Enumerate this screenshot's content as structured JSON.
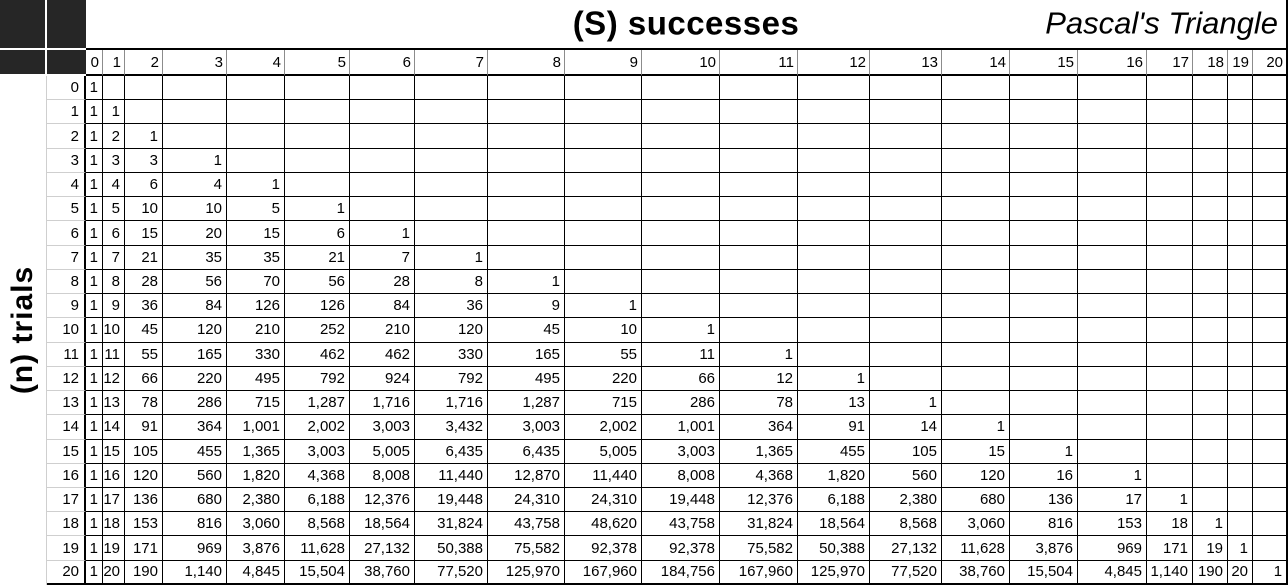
{
  "header": {
    "successes_title": "(S) successes",
    "pascals_title": "Pascal's Triangle"
  },
  "row_axis_label": "(n) trials",
  "table": {
    "column_headers": [
      "0",
      "1",
      "2",
      "3",
      "4",
      "5",
      "6",
      "7",
      "8",
      "9",
      "10",
      "11",
      "12",
      "13",
      "14",
      "15",
      "16",
      "17",
      "18",
      "19",
      "20"
    ],
    "rows": [
      {
        "n": "0",
        "values": [
          "1"
        ]
      },
      {
        "n": "1",
        "values": [
          "1",
          "1"
        ]
      },
      {
        "n": "2",
        "values": [
          "1",
          "2",
          "1"
        ]
      },
      {
        "n": "3",
        "values": [
          "1",
          "3",
          "3",
          "1"
        ]
      },
      {
        "n": "4",
        "values": [
          "1",
          "4",
          "6",
          "4",
          "1"
        ]
      },
      {
        "n": "5",
        "values": [
          "1",
          "5",
          "10",
          "10",
          "5",
          "1"
        ]
      },
      {
        "n": "6",
        "values": [
          "1",
          "6",
          "15",
          "20",
          "15",
          "6",
          "1"
        ]
      },
      {
        "n": "7",
        "values": [
          "1",
          "7",
          "21",
          "35",
          "35",
          "21",
          "7",
          "1"
        ]
      },
      {
        "n": "8",
        "values": [
          "1",
          "8",
          "28",
          "56",
          "70",
          "56",
          "28",
          "8",
          "1"
        ]
      },
      {
        "n": "9",
        "values": [
          "1",
          "9",
          "36",
          "84",
          "126",
          "126",
          "84",
          "36",
          "9",
          "1"
        ]
      },
      {
        "n": "10",
        "values": [
          "1",
          "10",
          "45",
          "120",
          "210",
          "252",
          "210",
          "120",
          "45",
          "10",
          "1"
        ]
      },
      {
        "n": "11",
        "values": [
          "1",
          "11",
          "55",
          "165",
          "330",
          "462",
          "462",
          "330",
          "165",
          "55",
          "11",
          "1"
        ]
      },
      {
        "n": "12",
        "values": [
          "1",
          "12",
          "66",
          "220",
          "495",
          "792",
          "924",
          "792",
          "495",
          "220",
          "66",
          "12",
          "1"
        ]
      },
      {
        "n": "13",
        "values": [
          "1",
          "13",
          "78",
          "286",
          "715",
          "1,287",
          "1,716",
          "1,716",
          "1,287",
          "715",
          "286",
          "78",
          "13",
          "1"
        ]
      },
      {
        "n": "14",
        "values": [
          "1",
          "14",
          "91",
          "364",
          "1,001",
          "2,002",
          "3,003",
          "3,432",
          "3,003",
          "2,002",
          "1,001",
          "364",
          "91",
          "14",
          "1"
        ]
      },
      {
        "n": "15",
        "values": [
          "1",
          "15",
          "105",
          "455",
          "1,365",
          "3,003",
          "5,005",
          "6,435",
          "6,435",
          "5,005",
          "3,003",
          "1,365",
          "455",
          "105",
          "15",
          "1"
        ]
      },
      {
        "n": "16",
        "values": [
          "1",
          "16",
          "120",
          "560",
          "1,820",
          "4,368",
          "8,008",
          "11,440",
          "12,870",
          "11,440",
          "8,008",
          "4,368",
          "1,820",
          "560",
          "120",
          "16",
          "1"
        ]
      },
      {
        "n": "17",
        "values": [
          "1",
          "17",
          "136",
          "680",
          "2,380",
          "6,188",
          "12,376",
          "19,448",
          "24,310",
          "24,310",
          "19,448",
          "12,376",
          "6,188",
          "2,380",
          "680",
          "136",
          "17",
          "1"
        ]
      },
      {
        "n": "18",
        "values": [
          "1",
          "18",
          "153",
          "816",
          "3,060",
          "8,568",
          "18,564",
          "31,824",
          "43,758",
          "48,620",
          "43,758",
          "31,824",
          "18,564",
          "8,568",
          "3,060",
          "816",
          "153",
          "18",
          "1"
        ]
      },
      {
        "n": "19",
        "values": [
          "1",
          "19",
          "171",
          "969",
          "3,876",
          "11,628",
          "27,132",
          "50,388",
          "75,582",
          "92,378",
          "92,378",
          "75,582",
          "50,388",
          "27,132",
          "11,628",
          "3,876",
          "969",
          "171",
          "19",
          "1"
        ]
      },
      {
        "n": "20",
        "values": [
          "1",
          "20",
          "190",
          "1,140",
          "4,845",
          "15,504",
          "38,760",
          "77,520",
          "125,970",
          "167,960",
          "184,756",
          "167,960",
          "125,970",
          "77,520",
          "38,760",
          "15,504",
          "4,845",
          "1,140",
          "190",
          "20",
          "1"
        ]
      }
    ]
  }
}
